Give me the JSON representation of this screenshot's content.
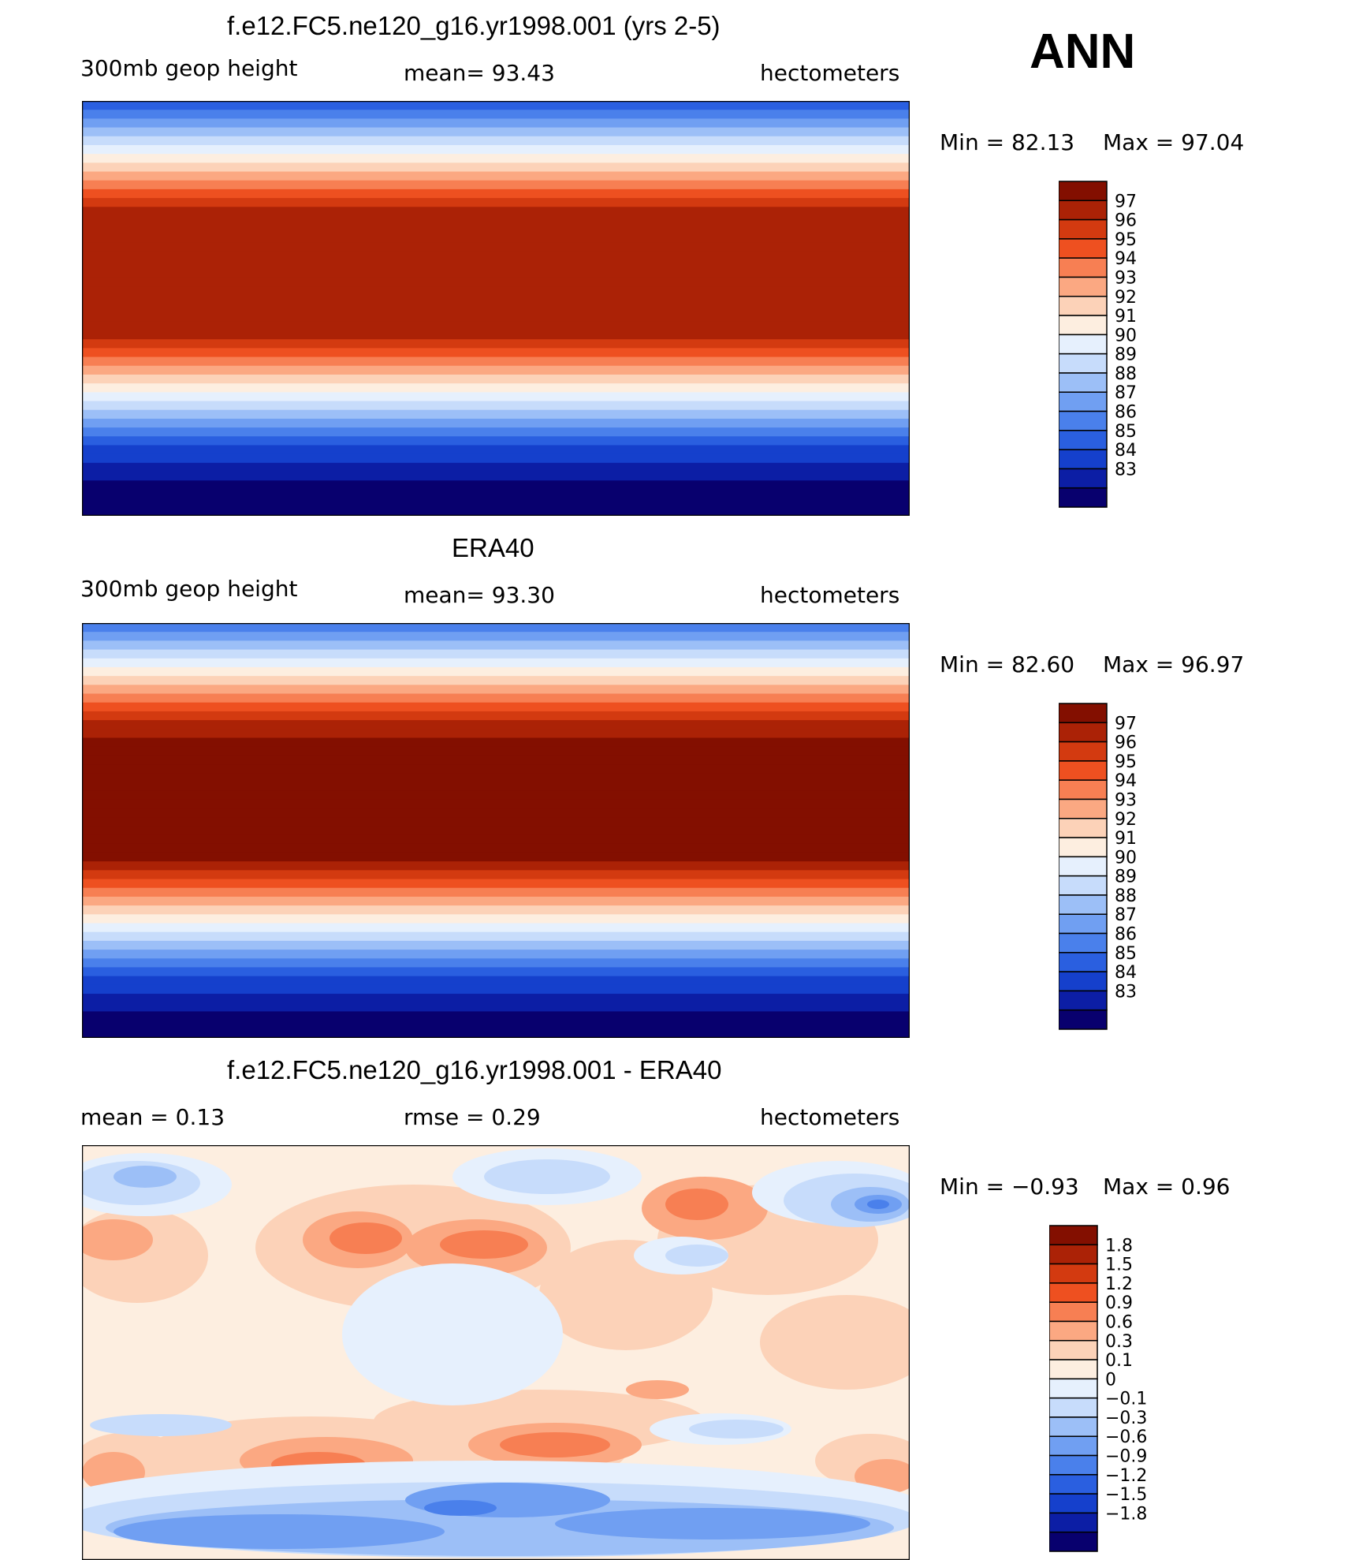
{
  "season": "ANN",
  "panels": [
    {
      "id": "model",
      "title": "f.e12.FC5.ne120_g16.yr1998.001 (yrs 2-5)",
      "left_label": "300mb  geop  height",
      "center_label": "mean=   93.43",
      "right_label": "hectometers",
      "min_label": "Min  =    82.13",
      "max_label": "Max  =    97.04",
      "colorbar": {
        "colors": [
          "#08006e",
          "#0c1ea5",
          "#1540cc",
          "#2a5fe0",
          "#4a80eb",
          "#709ff2",
          "#9cbff7",
          "#c7dcfb",
          "#e6f0fd",
          "#fdeee0",
          "#fcd2b8",
          "#fba882",
          "#f77f53",
          "#ee5020",
          "#d33a10",
          "#ab2206",
          "#830f00"
        ],
        "labels": [
          "97",
          "96",
          "95",
          "94",
          "93",
          "92",
          "91",
          "90",
          "89",
          "88",
          "87",
          "86",
          "85",
          "84",
          "83"
        ]
      }
    },
    {
      "id": "obs",
      "title": "ERA40",
      "left_label": "300mb  geop  height",
      "center_label": "mean=   93.30",
      "right_label": "hectometers",
      "min_label": "Min  =    82.60",
      "max_label": "Max  =    96.97",
      "colorbar": {
        "colors": [
          "#08006e",
          "#0c1ea5",
          "#1540cc",
          "#2a5fe0",
          "#4a80eb",
          "#709ff2",
          "#9cbff7",
          "#c7dcfb",
          "#e6f0fd",
          "#fdeee0",
          "#fcd2b8",
          "#fba882",
          "#f77f53",
          "#ee5020",
          "#d33a10",
          "#ab2206",
          "#830f00"
        ],
        "labels": [
          "97",
          "96",
          "95",
          "94",
          "93",
          "92",
          "91",
          "90",
          "89",
          "88",
          "87",
          "86",
          "85",
          "84",
          "83"
        ]
      }
    },
    {
      "id": "diff",
      "title": "f.e12.FC5.ne120_g16.yr1998.001 - ERA40",
      "left_label": "mean  =     0.13",
      "center_label": "rmse  =     0.29",
      "right_label": "hectometers",
      "min_label": "Min  =   −0.93",
      "max_label": "Max  =     0.96",
      "colorbar": {
        "colors": [
          "#08006e",
          "#0c1ea5",
          "#1540cc",
          "#2a5fe0",
          "#4a80eb",
          "#709ff2",
          "#9cbff7",
          "#c7dcfb",
          "#e6f0fd",
          "#fdeee0",
          "#fcd2b8",
          "#fba882",
          "#f77f53",
          "#ee5020",
          "#d33a10",
          "#ab2206",
          "#830f00"
        ],
        "labels": [
          "1.8",
          "1.5",
          "1.2",
          "0.9",
          "0.6",
          "0.3",
          "0.1",
          "0",
          "−0.1",
          "−0.3",
          "−0.6",
          "−0.9",
          "−1.2",
          "−1.5",
          "−1.8"
        ]
      }
    }
  ]
}
